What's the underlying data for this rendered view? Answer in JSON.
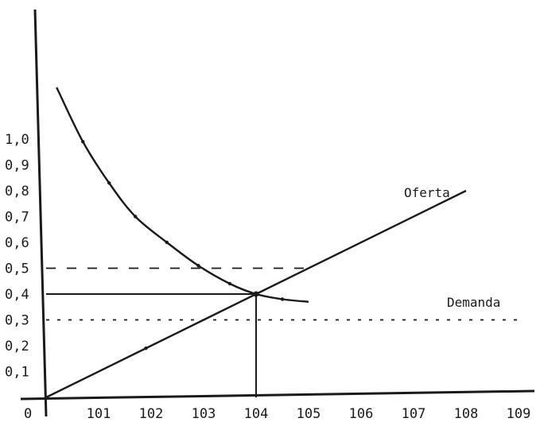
{
  "chart_data": {
    "type": "line",
    "title": "",
    "xlabel": "",
    "ylabel": "",
    "origin_label": "0",
    "xlim": [
      100,
      109
    ],
    "ylim": [
      0,
      1.3
    ],
    "x_ticks": [
      {
        "value": 101,
        "label": "101"
      },
      {
        "value": 102,
        "label": "102"
      },
      {
        "value": 103,
        "label": "103"
      },
      {
        "value": 104,
        "label": "104"
      },
      {
        "value": 105,
        "label": "105"
      },
      {
        "value": 106,
        "label": "106"
      },
      {
        "value": 107,
        "label": "107"
      },
      {
        "value": 108,
        "label": "108"
      },
      {
        "value": 109,
        "label": "109"
      }
    ],
    "y_ticks": [
      {
        "value": 0.1,
        "label": "0,1"
      },
      {
        "value": 0.2,
        "label": "0,2"
      },
      {
        "value": 0.3,
        "label": "0,3"
      },
      {
        "value": 0.4,
        "label": "0,4"
      },
      {
        "value": 0.5,
        "label": "0,5"
      },
      {
        "value": 0.6,
        "label": "0,6"
      },
      {
        "value": 0.7,
        "label": "0,7"
      },
      {
        "value": 0.8,
        "label": "0,8"
      },
      {
        "value": 0.9,
        "label": "0,9"
      },
      {
        "value": 1.0,
        "label": "1,0"
      }
    ],
    "series": [
      {
        "name": "Oferta",
        "style": "solid",
        "points": [
          [
            100.0,
            0.0
          ],
          [
            101.9,
            0.19
          ],
          [
            104.0,
            0.4
          ],
          [
            108.0,
            0.8
          ]
        ]
      },
      {
        "name": "Demanda",
        "style": "solid",
        "points": [
          [
            100.2,
            1.2
          ],
          [
            100.7,
            0.99
          ],
          [
            101.2,
            0.83
          ],
          [
            101.7,
            0.7
          ],
          [
            102.3,
            0.6
          ],
          [
            102.9,
            0.51
          ],
          [
            103.5,
            0.44
          ],
          [
            104.0,
            0.4
          ],
          [
            104.5,
            0.38
          ],
          [
            105.0,
            0.37
          ]
        ]
      }
    ],
    "reference_lines": [
      {
        "kind": "horizontal",
        "y": 0.5,
        "from_x": 100,
        "to_x": 105.0,
        "style": "dashed"
      },
      {
        "kind": "horizontal",
        "y": 0.4,
        "from_x": 100,
        "to_x": 104.0,
        "style": "solid"
      },
      {
        "kind": "horizontal",
        "y": 0.3,
        "from_x": 100,
        "to_x": 109.0,
        "style": "dotted"
      },
      {
        "kind": "vertical",
        "x": 104.0,
        "from_y": 0,
        "to_y": 0.4,
        "style": "solid"
      }
    ],
    "equilibrium": {
      "x": 104,
      "y": 0.4
    },
    "grid": false,
    "legend": "none",
    "colors": {
      "ink": "#1a1a1a",
      "background": "#ffffff"
    }
  }
}
